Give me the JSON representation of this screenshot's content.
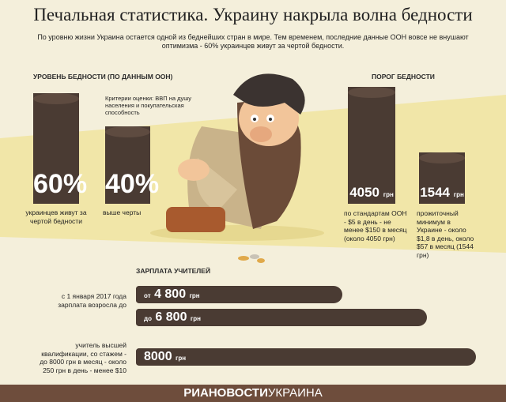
{
  "header": {
    "title": "Печальная статистика. Украину накрыла волна бедности",
    "subtitle": "По уровню жизни Украина остается одной из беднейших стран в мире. Тем временем, последние данные ООН вовсе не внушают оптимизма - 60% украинцев живут за чертой бедности."
  },
  "poverty_level": {
    "title": "УРОВЕНЬ БЕДНОСТИ (ПО ДАННЫМ ООН)",
    "criteria": "Критерии оценки: ВВП на душу населения и покупательская способность",
    "items": [
      {
        "value": "60%",
        "label": "украинцев живут за чертой бедности"
      },
      {
        "value": "40%",
        "label": "выше черты"
      }
    ]
  },
  "poverty_threshold": {
    "title": "ПОРОГ БЕДНОСТИ",
    "items": [
      {
        "value": "4050",
        "unit": "грн",
        "label": "по стандартам ООН - $5 в день - не менее $150 в месяц (около 4050 грн)"
      },
      {
        "value": "1544",
        "unit": "грн",
        "label": "прожиточный минимум в Украине - около $1,8 в день, около $57 в месяц (1544 грн)"
      }
    ]
  },
  "teacher_salary": {
    "title": "ЗАРПЛАТА УЧИТЕЛЕЙ",
    "rows": [
      {
        "label": "с 1 января 2017 года зарплата возросла до",
        "prefix": "от",
        "value": "4 800",
        "unit": "грн"
      },
      {
        "prefix": "до",
        "value": "6 800",
        "unit": "грн"
      },
      {
        "label": "учитель высшей квалификации, со стажем - до 8000 грн в месяц - около 250 грн в день - менее $10",
        "value": "8000",
        "unit": "грн"
      }
    ]
  },
  "footer": {
    "brand": "РИАНОВОСТИ",
    "region": "УКРАИНА"
  }
}
